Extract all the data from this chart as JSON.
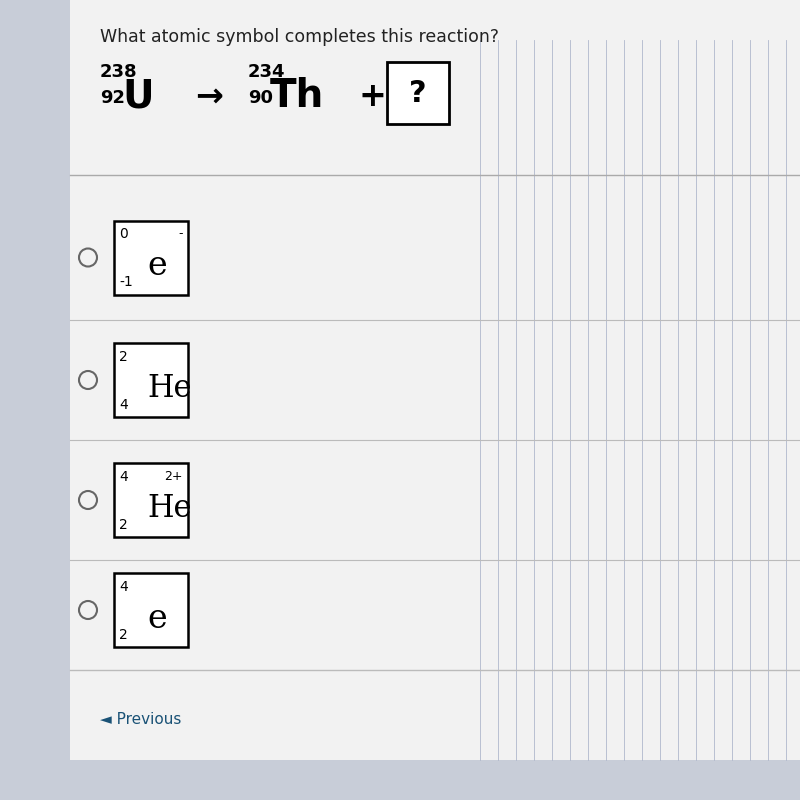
{
  "bg_color": "#c8cdd8",
  "panel_color": "#f0f0f0",
  "title": "What atomic symbol completes this reaction?",
  "title_fontsize": 12.5,
  "title_color": "#222222",
  "reaction": {
    "U_mass": "238",
    "U_atomic": "92",
    "U_symbol": "U",
    "arrow": "→",
    "Th_mass": "234",
    "Th_atomic": "90",
    "Th_symbol": "Th",
    "plus": "+",
    "question": "?"
  },
  "options": [
    {
      "superscript_left": "0",
      "superscript_right": "-",
      "subscript": "-1",
      "symbol": "e"
    },
    {
      "superscript_left": "2",
      "superscript_right": "",
      "subscript": "4",
      "symbol": "He"
    },
    {
      "superscript_left": "4",
      "superscript_right": "2+",
      "subscript": "2",
      "symbol": "He"
    },
    {
      "superscript_left": "4",
      "superscript_right": "",
      "subscript": "2",
      "symbol": "e"
    }
  ],
  "footer": "◄ Previous"
}
